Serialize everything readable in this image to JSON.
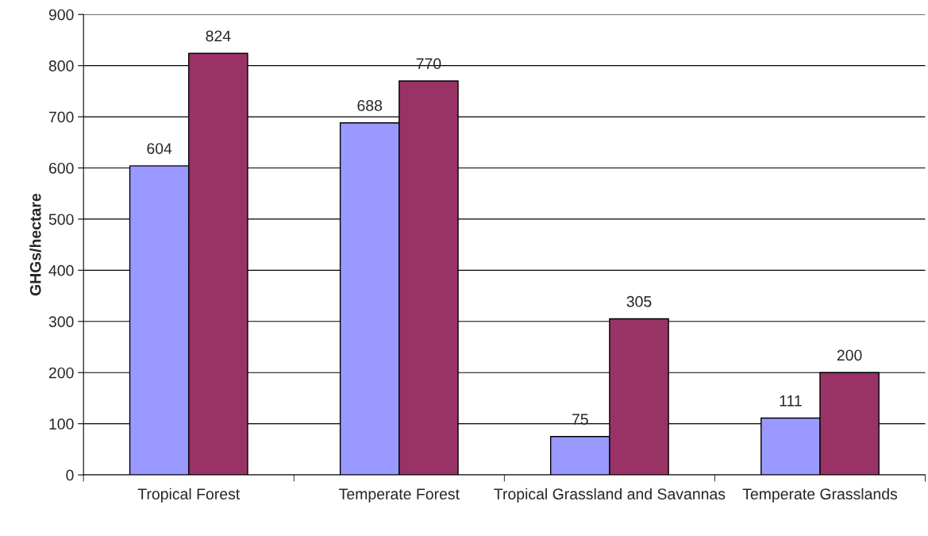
{
  "chart_data": {
    "type": "bar",
    "ylabel": "GHGs/hectare",
    "categories": [
      "Tropical Forest",
      "Temperate Forest",
      "Tropical Grassland and Savannas",
      "Temperate Grasslands"
    ],
    "series": [
      {
        "color": "#9999ff",
        "values": [
          604,
          688,
          75,
          111
        ]
      },
      {
        "color": "#993366",
        "values": [
          824,
          770,
          305,
          200
        ]
      }
    ],
    "ylim": [
      0,
      900
    ],
    "yticks": [
      0,
      100,
      200,
      300,
      400,
      500,
      600,
      700,
      800,
      900
    ],
    "grid": "y",
    "data_labels": true,
    "legend": false
  }
}
